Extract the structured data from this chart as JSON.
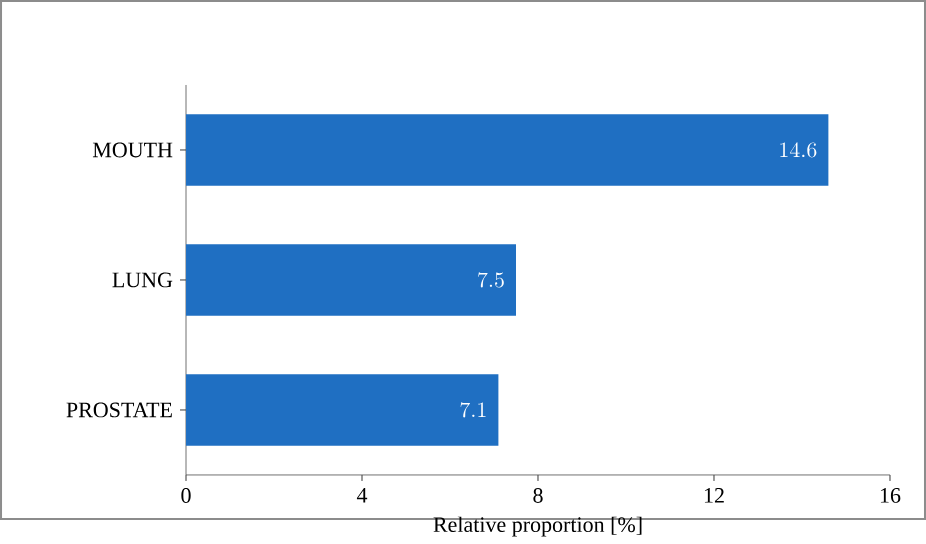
{
  "chart_data": {
    "type": "bar",
    "orientation": "horizontal",
    "xlabel": "Relative proportion [%]",
    "categories": [
      "MOUTH",
      "LUNG",
      "PROSTATE"
    ],
    "values": [
      14.6,
      7.5,
      7.1
    ],
    "color": "#1f6fc2",
    "xlim": [
      0,
      16
    ],
    "xticks": [
      0,
      4,
      8,
      12,
      16
    ],
    "data_labels": true
  }
}
